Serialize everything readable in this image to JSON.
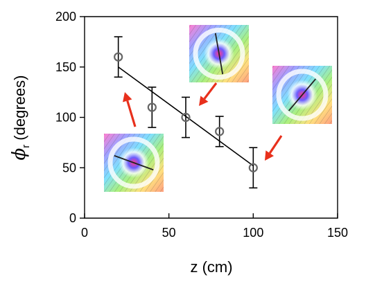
{
  "chart_data": {
    "type": "scatter",
    "title": "",
    "xlabel": "z (cm)",
    "ylabel_symbol": "ϕ",
    "ylabel_subscript": "r",
    "ylabel_unit": "(degrees)",
    "xlim": [
      0,
      150
    ],
    "ylim": [
      0,
      200
    ],
    "xticks": [
      0,
      50,
      100,
      150
    ],
    "yticks": [
      0,
      50,
      100,
      150,
      200
    ],
    "grid": false,
    "series": [
      {
        "x": [
          20,
          40,
          60,
          80,
          100
        ],
        "y": [
          160,
          110,
          100,
          86,
          50
        ],
        "yerr": [
          20,
          20,
          20,
          15,
          20
        ]
      }
    ],
    "fit_line": {
      "x": [
        20,
        100
      ],
      "y": [
        150,
        52
      ]
    },
    "insets": [
      {
        "icon": "vortex-beam-profile-icon",
        "angle_deg": 160,
        "points_to": [
          20,
          160
        ]
      },
      {
        "icon": "vortex-beam-profile-icon",
        "angle_deg": 100,
        "points_to": [
          60,
          100
        ]
      },
      {
        "icon": "vortex-beam-profile-icon",
        "angle_deg": 50,
        "points_to": [
          100,
          50
        ]
      }
    ],
    "colors": {
      "arrow": "#e8301c",
      "marker": "#666666",
      "axes": "#000000"
    }
  }
}
